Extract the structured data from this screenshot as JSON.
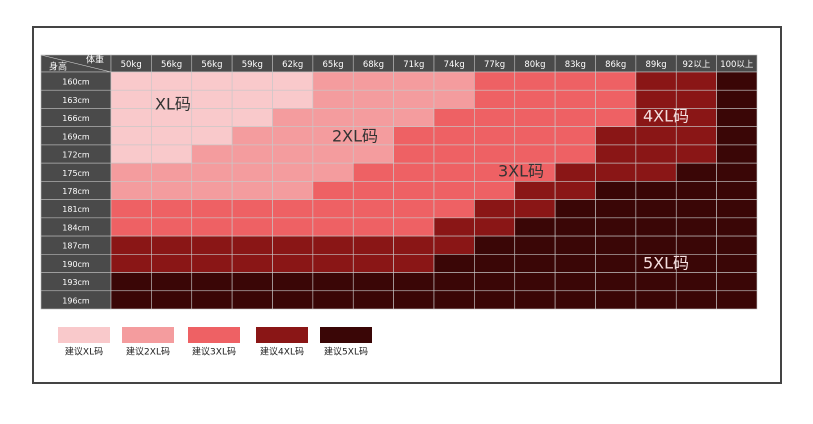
{
  "header": {
    "corner_top": "体重",
    "corner_bottom": "身高"
  },
  "columns": [
    "50kg",
    "56kg",
    "56kg",
    "59kg",
    "62kg",
    "65kg",
    "68kg",
    "71kg",
    "74kg",
    "77kg",
    "80kg",
    "83kg",
    "86kg",
    "89kg",
    "92以上",
    "100以上"
  ],
  "rows": [
    {
      "label": "160cm",
      "cells": [
        0,
        0,
        0,
        0,
        0,
        1,
        1,
        1,
        1,
        2,
        2,
        2,
        2,
        3,
        3,
        4
      ]
    },
    {
      "label": "163cm",
      "cells": [
        0,
        0,
        0,
        0,
        0,
        1,
        1,
        1,
        1,
        2,
        2,
        2,
        2,
        3,
        3,
        4
      ]
    },
    {
      "label": "166cm",
      "cells": [
        0,
        0,
        0,
        0,
        1,
        1,
        1,
        1,
        2,
        2,
        2,
        2,
        2,
        3,
        3,
        4
      ]
    },
    {
      "label": "169cm",
      "cells": [
        0,
        0,
        0,
        1,
        1,
        1,
        1,
        2,
        2,
        2,
        2,
        2,
        3,
        3,
        3,
        4
      ]
    },
    {
      "label": "172cm",
      "cells": [
        0,
        0,
        1,
        1,
        1,
        1,
        1,
        2,
        2,
        2,
        2,
        2,
        3,
        3,
        3,
        4
      ]
    },
    {
      "label": "175cm",
      "cells": [
        1,
        1,
        1,
        1,
        1,
        1,
        2,
        2,
        2,
        2,
        2,
        3,
        3,
        3,
        4,
        4
      ]
    },
    {
      "label": "178cm",
      "cells": [
        1,
        1,
        1,
        1,
        1,
        2,
        2,
        2,
        2,
        2,
        3,
        3,
        4,
        4,
        4,
        4
      ]
    },
    {
      "label": "181cm",
      "cells": [
        2,
        2,
        2,
        2,
        2,
        2,
        2,
        2,
        2,
        3,
        3,
        4,
        4,
        4,
        4,
        4
      ]
    },
    {
      "label": "184cm",
      "cells": [
        2,
        2,
        2,
        2,
        2,
        2,
        2,
        2,
        3,
        3,
        4,
        4,
        4,
        4,
        4,
        4
      ]
    },
    {
      "label": "187cm",
      "cells": [
        3,
        3,
        3,
        3,
        3,
        3,
        3,
        3,
        3,
        4,
        4,
        4,
        4,
        4,
        4,
        4
      ]
    },
    {
      "label": "190cm",
      "cells": [
        3,
        3,
        3,
        3,
        3,
        3,
        3,
        3,
        4,
        4,
        4,
        4,
        4,
        4,
        4,
        4
      ]
    },
    {
      "label": "193cm",
      "cells": [
        4,
        4,
        4,
        4,
        4,
        4,
        4,
        4,
        4,
        4,
        4,
        4,
        4,
        4,
        4,
        4
      ]
    },
    {
      "label": "196cm",
      "cells": [
        4,
        4,
        4,
        4,
        4,
        4,
        4,
        4,
        4,
        4,
        4,
        4,
        4,
        4,
        4,
        4
      ]
    }
  ],
  "overlay_labels": [
    "XL码",
    "2XL码",
    "3XL码",
    "4XL码",
    "5XL码"
  ],
  "legend": [
    {
      "label": "建议XL码",
      "color": "#f9c9cb"
    },
    {
      "label": "建议2XL码",
      "color": "#f49c9e"
    },
    {
      "label": "建议3XL码",
      "color": "#ee6164"
    },
    {
      "label": "建议4XL码",
      "color": "#8a1616"
    },
    {
      "label": "建议5XL码",
      "color": "#3a0606"
    }
  ]
}
